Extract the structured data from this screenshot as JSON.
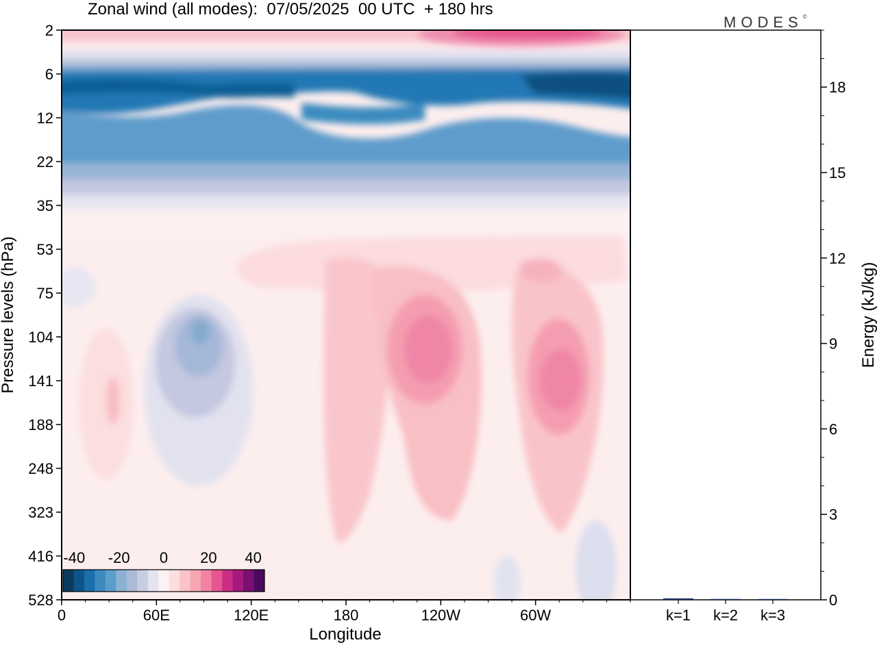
{
  "header": {
    "title": "Zonal wind (all modes):  07/05/2025  00 UTC  + 180 hrs",
    "brand": "MODES",
    "brand_mark": "©"
  },
  "chart_data": [
    {
      "type": "heatmap",
      "title": "Zonal wind (all modes):  07/05/2025  00 UTC  + 180 hrs",
      "xlabel": "Longitude",
      "ylabel": "Pressure levels (hPa)",
      "x_ticks": [
        "0",
        "60E",
        "120E",
        "180",
        "120W",
        "60W"
      ],
      "x_tick_positions_deg": [
        0,
        60,
        120,
        180,
        240,
        300
      ],
      "xlim": [
        0,
        360
      ],
      "y_ticks": [
        "2",
        "6",
        "12",
        "22",
        "35",
        "53",
        "75",
        "104",
        "141",
        "188",
        "248",
        "323",
        "416",
        "528"
      ],
      "y_scale": "model levels, pressure increasing downward",
      "colorbar": {
        "ticks": [
          "-40",
          "-20",
          "0",
          "20",
          "40"
        ],
        "tick_values": [
          -40,
          -20,
          0,
          20,
          40
        ],
        "levels": [
          -45,
          -40,
          -35,
          -30,
          -25,
          -20,
          -15,
          -10,
          -5,
          0,
          5,
          10,
          15,
          20,
          25,
          30,
          35,
          40,
          45
        ],
        "colors": [
          "#0b3a5e",
          "#0d5589",
          "#1a6fab",
          "#3b8bbf",
          "#5c9ecb",
          "#8bb2d4",
          "#aabbd8",
          "#c9cde3",
          "#e4e4f0",
          "#fdf2f2",
          "#fcdede",
          "#f9c3c8",
          "#f5a6b3",
          "#f082a2",
          "#e6578f",
          "#cc2e84",
          "#a51a7c",
          "#7b0f72",
          "#4d0b5e"
        ]
      },
      "features": [
        {
          "region": "upper levels 6-22 hPa",
          "longitude": "0-360",
          "value_range": [
            -40,
            -20
          ]
        },
        {
          "region": "top 2-4 hPa",
          "longitude": "210-300",
          "value_range": [
            20,
            30
          ]
        },
        {
          "region": "104-188 hPa",
          "longitude": "~210",
          "value_range": [
            10,
            20
          ]
        },
        {
          "region": "104-188 hPa",
          "longitude": "~300",
          "value_range": [
            10,
            20
          ]
        },
        {
          "region": "104-188 hPa",
          "longitude": "~75E",
          "value_range": [
            -20,
            -10
          ]
        },
        {
          "region": "lower levels",
          "longitude": "0-360",
          "value_range": [
            -5,
            10
          ]
        }
      ]
    },
    {
      "type": "bar",
      "ylabel": "Energy (kJ/kg)",
      "categories": [
        "k=1",
        "k=2",
        "k=3"
      ],
      "values": [
        0.05,
        0.03,
        0.01
      ],
      "ylim": [
        0,
        20
      ],
      "y_ticks": [
        0,
        3,
        6,
        9,
        12,
        15,
        18
      ]
    }
  ]
}
